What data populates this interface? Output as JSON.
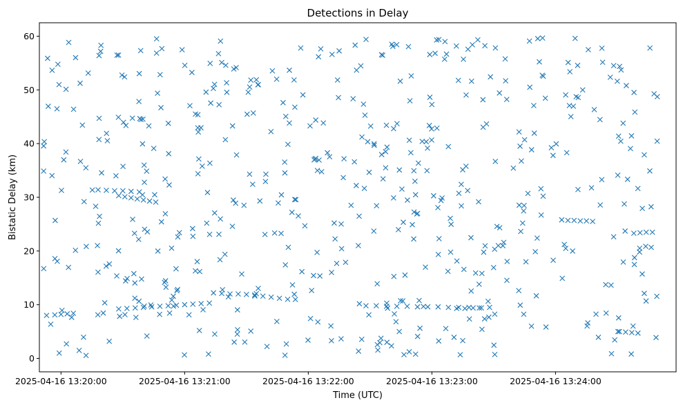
{
  "chart_data": {
    "type": "scatter",
    "title": "Detections in Delay",
    "xlabel": "Time (UTC)",
    "ylabel": "Bistatic Delay (km)",
    "x_ticks": [
      "2025-04-16 13:20:00",
      "2025-04-16 13:21:00",
      "2025-04-16 13:22:00",
      "2025-04-16 13:23:00",
      "2025-04-16 13:24:00"
    ],
    "x_tick_values_s": [
      0,
      60,
      120,
      180,
      240
    ],
    "xlim_s": [
      -10.5,
      298.5
    ],
    "y_ticks": [
      0,
      10,
      20,
      30,
      40,
      50,
      60
    ],
    "ylim": [
      -2.5,
      62.5
    ],
    "marker": "x",
    "color": "#1f77b4",
    "grid": false,
    "tracks": [
      {
        "x": [
          -7,
          -3,
          0,
          3,
          6
        ],
        "y": [
          8.0,
          8.1,
          8.2,
          8.3,
          8.4
        ]
      },
      {
        "x": [
          18,
          22,
          26,
          30,
          34,
          38
        ],
        "y": [
          31.4,
          31.3,
          31.2,
          31.2,
          31.1,
          31.0
        ]
      },
      {
        "x": [
          28,
          31,
          34,
          37,
          40,
          43,
          46
        ],
        "y": [
          30.3,
          30.1,
          29.9,
          29.7,
          29.5,
          29.3,
          29.1
        ]
      },
      {
        "x": [
          28,
          32,
          36,
          40,
          44,
          48,
          52,
          56,
          60,
          64,
          68,
          72
        ],
        "y": [
          9.2,
          9.3,
          9.4,
          9.5,
          9.6,
          9.7,
          9.8,
          9.9,
          10.0,
          10.1,
          10.2,
          10.3
        ]
      },
      {
        "x": [
          74,
          78,
          82,
          86,
          90,
          94,
          98,
          102,
          106,
          110
        ],
        "y": [
          12.2,
          12.1,
          12.0,
          12.0,
          11.9,
          11.8,
          11.6,
          11.4,
          11.2,
          11.0
        ]
      },
      {
        "x": [
          148,
          153,
          158,
          163,
          168,
          173,
          178,
          183,
          188,
          193,
          198,
          203
        ],
        "y": [
          9.8,
          9.8,
          9.7,
          9.7,
          9.7,
          9.6,
          9.6,
          9.6,
          9.5,
          9.5,
          9.5,
          9.4
        ]
      },
      {
        "x": [
          192,
          196,
          200,
          204,
          208
        ],
        "y": [
          9.3,
          9.3,
          9.4,
          9.4,
          9.5
        ]
      },
      {
        "x": [
          243,
          246,
          249,
          252,
          255,
          258
        ],
        "y": [
          25.8,
          25.7,
          25.7,
          25.6,
          25.6,
          25.5
        ]
      },
      {
        "x": [
          278,
          281,
          284,
          287
        ],
        "y": [
          23.3,
          23.4,
          23.5,
          23.5
        ]
      },
      {
        "x": [
          271,
          274,
          277,
          280
        ],
        "y": [
          5.0,
          4.9,
          4.8,
          4.7
        ]
      }
    ],
    "noise": {
      "count": 560,
      "x_range": [
        -9,
        290
      ],
      "y_range": [
        0.5,
        59.8
      ]
    }
  }
}
